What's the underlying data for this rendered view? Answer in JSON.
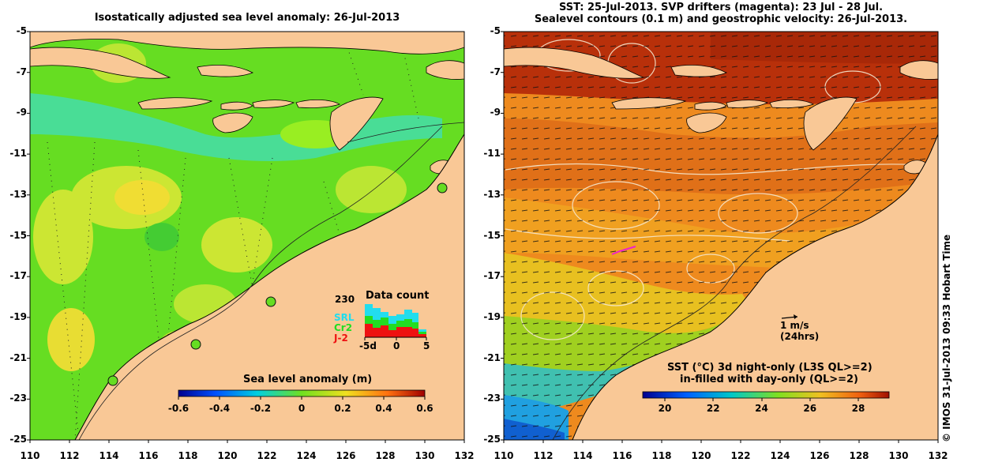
{
  "left_panel": {
    "title": "Isostatically adjusted sea level anomaly: 26-Jul-2013",
    "colorbar_label": "Sea level anomaly (m)",
    "colorbar_ticks": [
      "-0.6",
      "-0.4",
      "-0.2",
      "0",
      "0.2",
      "0.4",
      "0.6"
    ],
    "data_count": {
      "title": "Data count",
      "max_label": "230",
      "legend": [
        {
          "label": "SRL",
          "color": "#22ddee"
        },
        {
          "label": "Cr2",
          "color": "#22dd22"
        },
        {
          "label": "J-2",
          "color": "#ee1111"
        }
      ],
      "x_ticks": [
        "-5d",
        "0",
        "5"
      ]
    }
  },
  "right_panel": {
    "title_line1": "SST: 25-Jul-2013. SVP drifters (magenta): 23 Jul - 28 Jul.",
    "title_line2": "Sealevel contours (0.1 m) and geostrophic velocity: 26-Jul-2013.",
    "scale_arrow_label": "1 m/s",
    "scale_arrow_sublabel": "(24hrs)",
    "colorbar_label_line1": "SST (°C)  3d night-only (L3S QL>=2)",
    "colorbar_label_line2": "in-filled with day-only (QL>=2)",
    "colorbar_ticks": [
      "20",
      "22",
      "24",
      "26",
      "28"
    ]
  },
  "axes": {
    "lat_ticks": [
      "-5",
      "-7",
      "-9",
      "-11",
      "-13",
      "-15",
      "-17",
      "-19",
      "-21",
      "-23",
      "-25"
    ],
    "lon_ticks": [
      "110",
      "112",
      "114",
      "116",
      "118",
      "120",
      "122",
      "124",
      "126",
      "128",
      "130",
      "132"
    ]
  },
  "credit": "© IMOS 31-Jul-2013 09:33 Hobart Time",
  "colors": {
    "land": "#f9c896",
    "sla_ocean": "#66dd22",
    "sst_ocean": "#ee8a1e",
    "sst_warm": "#b8300a"
  }
}
